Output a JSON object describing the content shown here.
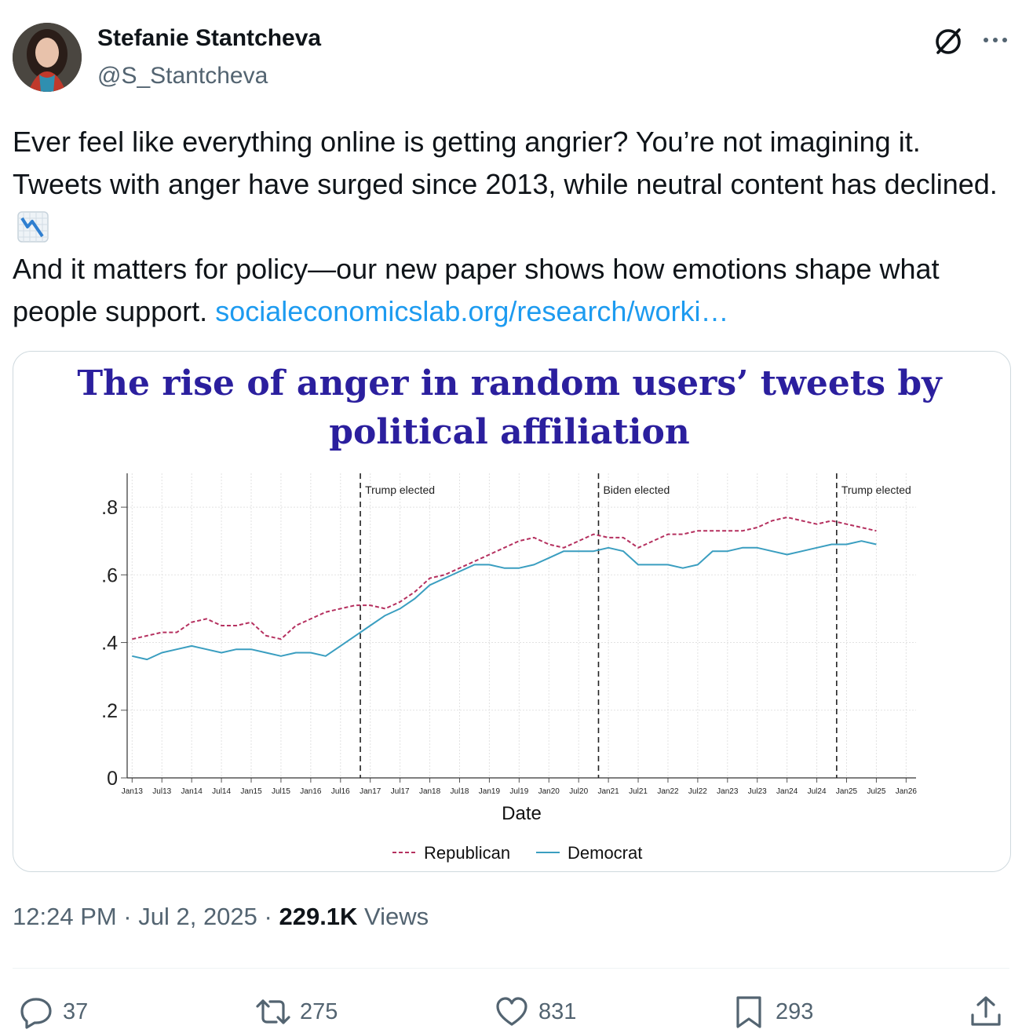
{
  "author": {
    "name": "Stefanie Stantcheva",
    "handle": "@S_Stantcheva"
  },
  "icons": {
    "grok": "grok-icon",
    "more": "more-icon",
    "emoji": "chart-decreasing-icon",
    "reply": "reply-icon",
    "retweet": "retweet-icon",
    "like": "heart-icon",
    "bookmark": "bookmark-icon",
    "share": "share-icon"
  },
  "tweet": {
    "line1": "Ever feel like everything online is getting angrier? You’re not imagining it. Tweets with anger have surged since 2013, while neutral content has declined.",
    "line2_text": "And it matters for policy—our new paper shows how emotions shape what people support.",
    "link_text": "socialeconomicslab.org/research/worki…"
  },
  "chart_data": {
    "type": "line",
    "title": "The rise of anger in random users’ tweets by political affiliation",
    "xlabel": "Date",
    "ylabel": "",
    "ylim": [
      0,
      0.9
    ],
    "yticks": [
      0,
      0.2,
      0.4,
      0.6,
      0.8
    ],
    "ytick_labels": [
      "0",
      ".2",
      ".4",
      ".6",
      ".8"
    ],
    "xlim": [
      "2012-12",
      "2026-03"
    ],
    "xticks": [
      "Jan13",
      "Jul13",
      "Jan14",
      "Jul14",
      "Jan15",
      "Jul15",
      "Jan16",
      "Jul16",
      "Jan17",
      "Jul17",
      "Jan18",
      "Jul18",
      "Jan19",
      "Jul19",
      "Jan20",
      "Jul20",
      "Jan21",
      "Jul21",
      "Jan22",
      "Jul22",
      "Jan23",
      "Jul23",
      "Jan24",
      "Jul24",
      "Jan25",
      "Jul25",
      "Jan26"
    ],
    "grid": true,
    "legend_position": "bottom",
    "events": [
      {
        "date": "2016-11",
        "label": "Trump elected"
      },
      {
        "date": "2020-11",
        "label": "Biden elected"
      },
      {
        "date": "2024-11",
        "label": "Trump elected"
      }
    ],
    "series": [
      {
        "name": "Republican",
        "color": "#b5305f",
        "style": "dashed",
        "points": [
          [
            "2013-01",
            0.41
          ],
          [
            "2013-04",
            0.42
          ],
          [
            "2013-07",
            0.43
          ],
          [
            "2013-10",
            0.43
          ],
          [
            "2014-01",
            0.46
          ],
          [
            "2014-04",
            0.47
          ],
          [
            "2014-07",
            0.45
          ],
          [
            "2014-10",
            0.45
          ],
          [
            "2015-01",
            0.46
          ],
          [
            "2015-04",
            0.42
          ],
          [
            "2015-07",
            0.41
          ],
          [
            "2015-10",
            0.45
          ],
          [
            "2016-01",
            0.47
          ],
          [
            "2016-04",
            0.49
          ],
          [
            "2016-07",
            0.5
          ],
          [
            "2016-10",
            0.51
          ],
          [
            "2017-01",
            0.51
          ],
          [
            "2017-04",
            0.5
          ],
          [
            "2017-07",
            0.52
          ],
          [
            "2017-10",
            0.55
          ],
          [
            "2018-01",
            0.59
          ],
          [
            "2018-04",
            0.6
          ],
          [
            "2018-07",
            0.62
          ],
          [
            "2018-10",
            0.64
          ],
          [
            "2019-01",
            0.66
          ],
          [
            "2019-04",
            0.68
          ],
          [
            "2019-07",
            0.7
          ],
          [
            "2019-10",
            0.71
          ],
          [
            "2020-01",
            0.69
          ],
          [
            "2020-04",
            0.68
          ],
          [
            "2020-07",
            0.7
          ],
          [
            "2020-10",
            0.72
          ],
          [
            "2021-01",
            0.71
          ],
          [
            "2021-04",
            0.71
          ],
          [
            "2021-07",
            0.68
          ],
          [
            "2021-10",
            0.7
          ],
          [
            "2022-01",
            0.72
          ],
          [
            "2022-04",
            0.72
          ],
          [
            "2022-07",
            0.73
          ],
          [
            "2022-10",
            0.73
          ],
          [
            "2023-01",
            0.73
          ],
          [
            "2023-04",
            0.73
          ],
          [
            "2023-07",
            0.74
          ],
          [
            "2023-10",
            0.76
          ],
          [
            "2024-01",
            0.77
          ],
          [
            "2024-04",
            0.76
          ],
          [
            "2024-07",
            0.75
          ],
          [
            "2024-10",
            0.76
          ],
          [
            "2025-01",
            0.75
          ],
          [
            "2025-04",
            0.74
          ],
          [
            "2025-07",
            0.73
          ]
        ]
      },
      {
        "name": "Democrat",
        "color": "#3a9ec0",
        "style": "solid",
        "points": [
          [
            "2013-01",
            0.36
          ],
          [
            "2013-04",
            0.35
          ],
          [
            "2013-07",
            0.37
          ],
          [
            "2013-10",
            0.38
          ],
          [
            "2014-01",
            0.39
          ],
          [
            "2014-04",
            0.38
          ],
          [
            "2014-07",
            0.37
          ],
          [
            "2014-10",
            0.38
          ],
          [
            "2015-01",
            0.38
          ],
          [
            "2015-04",
            0.37
          ],
          [
            "2015-07",
            0.36
          ],
          [
            "2015-10",
            0.37
          ],
          [
            "2016-01",
            0.37
          ],
          [
            "2016-04",
            0.36
          ],
          [
            "2016-07",
            0.39
          ],
          [
            "2016-10",
            0.42
          ],
          [
            "2017-01",
            0.45
          ],
          [
            "2017-04",
            0.48
          ],
          [
            "2017-07",
            0.5
          ],
          [
            "2017-10",
            0.53
          ],
          [
            "2018-01",
            0.57
          ],
          [
            "2018-04",
            0.59
          ],
          [
            "2018-07",
            0.61
          ],
          [
            "2018-10",
            0.63
          ],
          [
            "2019-01",
            0.63
          ],
          [
            "2019-04",
            0.62
          ],
          [
            "2019-07",
            0.62
          ],
          [
            "2019-10",
            0.63
          ],
          [
            "2020-01",
            0.65
          ],
          [
            "2020-04",
            0.67
          ],
          [
            "2020-07",
            0.67
          ],
          [
            "2020-10",
            0.67
          ],
          [
            "2021-01",
            0.68
          ],
          [
            "2021-04",
            0.67
          ],
          [
            "2021-07",
            0.63
          ],
          [
            "2021-10",
            0.63
          ],
          [
            "2022-01",
            0.63
          ],
          [
            "2022-04",
            0.62
          ],
          [
            "2022-07",
            0.63
          ],
          [
            "2022-10",
            0.67
          ],
          [
            "2023-01",
            0.67
          ],
          [
            "2023-04",
            0.68
          ],
          [
            "2023-07",
            0.68
          ],
          [
            "2023-10",
            0.67
          ],
          [
            "2024-01",
            0.66
          ],
          [
            "2024-04",
            0.67
          ],
          [
            "2024-07",
            0.68
          ],
          [
            "2024-10",
            0.69
          ],
          [
            "2025-01",
            0.69
          ],
          [
            "2025-04",
            0.7
          ],
          [
            "2025-07",
            0.69
          ]
        ]
      }
    ]
  },
  "meta": {
    "time": "12:24 PM · Jul 2, 2025 · ",
    "views_count": "229.1K",
    "views_label": " Views"
  },
  "actions": {
    "replies": "37",
    "retweets": "275",
    "likes": "831",
    "bookmarks": "293"
  }
}
